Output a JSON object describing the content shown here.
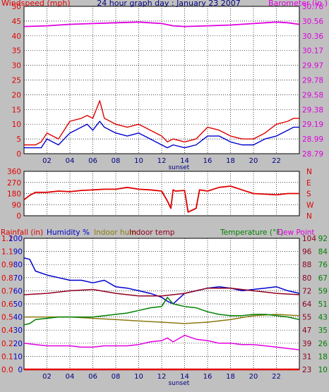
{
  "colors": {
    "background": "#c0c0c0",
    "plot_bg": "#ffffff",
    "axis_red": "#e00000",
    "magenta": "#e000e0",
    "blue": "#0000d0",
    "olive": "#8a7a10",
    "darkred": "#900020",
    "green": "#008000",
    "navy": "#000080"
  },
  "chart_data": [
    {
      "type": "line",
      "title": "24 hour graph day : January 23 2007",
      "left_label": "Windspeed (mph)",
      "right_label": "Barometer (in.)",
      "x_ticks": [
        "02",
        "04",
        "06",
        "08",
        "10",
        "12",
        "14",
        "16",
        "18",
        "20",
        "22"
      ],
      "x_note": "sunset",
      "y_left_ticks": [
        "0",
        "5",
        "10",
        "15",
        "20",
        "25",
        "30",
        "35",
        "40",
        "45",
        "50"
      ],
      "y_right_ticks": [
        "28.79",
        "28.99",
        "29.19",
        "29.38",
        "29.58",
        "29.78",
        "29.97",
        "30.17",
        "30.36",
        "30.56",
        "30.76"
      ],
      "ylim_left": [
        0,
        50
      ],
      "ylim_right": [
        28.79,
        30.76
      ],
      "grid": true,
      "series": [
        {
          "name": "gust",
          "color": "#e00000",
          "x": [
            0,
            1,
            1.5,
            2,
            3,
            4,
            5,
            5.5,
            6,
            6.6,
            7,
            8,
            9,
            10,
            11,
            12,
            12.5,
            13,
            14,
            15,
            16,
            17,
            18,
            19,
            20,
            21,
            22,
            23,
            23.5,
            24
          ],
          "values": [
            3,
            3,
            4,
            7,
            5,
            11,
            12,
            13,
            12,
            18,
            12,
            10,
            9,
            10,
            8,
            6,
            4,
            5,
            4,
            5,
            9,
            8,
            6,
            5,
            5,
            7,
            10,
            11,
            12,
            12
          ]
        },
        {
          "name": "average",
          "color": "#0000d0",
          "x": [
            0,
            1,
            1.5,
            2,
            3,
            4,
            5,
            5.5,
            6,
            6.6,
            7,
            8,
            9,
            10,
            11,
            12,
            12.5,
            13,
            14,
            15,
            16,
            17,
            18,
            19,
            20,
            21,
            22,
            23,
            23.5,
            24
          ],
          "values": [
            2,
            2,
            2,
            5,
            3,
            7,
            9,
            10,
            8,
            11,
            9,
            7,
            6,
            7,
            5,
            3,
            2,
            3,
            2,
            3,
            6,
            6,
            4,
            3,
            3,
            5,
            6,
            8,
            9,
            9
          ]
        },
        {
          "name": "barometer",
          "color": "#e000e0",
          "axis": "right",
          "x": [
            0,
            2,
            4,
            6,
            8,
            10,
            12,
            13,
            14,
            16,
            18,
            20,
            22,
            23,
            24
          ],
          "values": [
            30.49,
            30.5,
            30.52,
            30.53,
            30.54,
            30.55,
            30.53,
            30.5,
            30.49,
            30.5,
            30.51,
            30.53,
            30.55,
            30.54,
            30.52
          ]
        }
      ]
    },
    {
      "type": "line",
      "title": "",
      "y_left_ticks": [
        "0",
        "90",
        "180",
        "270",
        "360"
      ],
      "y_right_ticks": [
        "N",
        "W",
        "S",
        "E",
        "N"
      ],
      "ylim": [
        0,
        360
      ],
      "series": [
        {
          "name": "wind direction",
          "color": "#e00000",
          "x": [
            0,
            0.5,
            1,
            2,
            3,
            4,
            5,
            6,
            7,
            8,
            9,
            10,
            11,
            12,
            12.5,
            12.8,
            13,
            13.2,
            14,
            14.3,
            15,
            15.3,
            16,
            17,
            18,
            19,
            20,
            21,
            22,
            23,
            24
          ],
          "values": [
            130,
            165,
            190,
            190,
            200,
            195,
            205,
            210,
            215,
            215,
            230,
            215,
            210,
            200,
            120,
            60,
            210,
            200,
            205,
            30,
            60,
            210,
            200,
            230,
            240,
            210,
            180,
            175,
            170,
            180,
            180
          ]
        }
      ]
    },
    {
      "type": "line",
      "title": "",
      "legend": [
        "Rainfall (in)",
        "Humidity %",
        "Indoor hum",
        "Indoor temp",
        "Temperature (°F)",
        "Dew Point"
      ],
      "x_ticks": [
        "02",
        "04",
        "06",
        "08",
        "10",
        "12",
        "14",
        "16",
        "18",
        "20",
        "22"
      ],
      "x_note": "sunset",
      "y_rain_ticks": [
        "0.0",
        "0.1",
        "0.2",
        "0.4",
        "0.5",
        "0.6",
        "0.7",
        "0.8",
        "0.9",
        "1.1",
        "1.2"
      ],
      "y_hum_ticks": [
        "0",
        "10",
        "20",
        "30",
        "40",
        "50",
        "60",
        "70",
        "80",
        "90",
        "100"
      ],
      "y_temp_ticks_a": [
        "23",
        "31",
        "39",
        "47",
        "55",
        "64",
        "72",
        "80",
        "88",
        "96",
        "104"
      ],
      "y_temp_ticks_b": [
        "10",
        "18",
        "26",
        "35",
        "43",
        "51",
        "59",
        "67",
        "76",
        "84",
        "92"
      ],
      "ylim_humidity": [
        0,
        100
      ],
      "series": [
        {
          "name": "Humidity %",
          "color": "#0000d0",
          "x": [
            0,
            0.5,
            1,
            2,
            3,
            4,
            5,
            6,
            7,
            8,
            9,
            10,
            11,
            12,
            12.5,
            13,
            14,
            15,
            16,
            17,
            18,
            19,
            20,
            21,
            22,
            23,
            24
          ],
          "values": [
            85,
            84,
            75,
            72,
            70,
            68,
            68,
            66,
            68,
            63,
            62,
            60,
            58,
            55,
            52,
            50,
            58,
            60,
            62,
            63,
            62,
            60,
            61,
            62,
            63,
            60,
            58
          ]
        },
        {
          "name": "Indoor hum",
          "color": "#8a7a10",
          "x": [
            0,
            2,
            4,
            6,
            8,
            10,
            12,
            14,
            16,
            18,
            20,
            22,
            24
          ],
          "values": [
            40,
            40,
            40,
            39,
            38,
            37,
            36,
            35,
            36,
            38,
            41,
            42,
            41
          ]
        },
        {
          "name": "Indoor temp",
          "color": "#900020",
          "x": [
            0,
            2,
            4,
            6,
            8,
            10,
            12,
            14,
            16,
            18,
            20,
            22,
            24
          ],
          "values": [
            57,
            58,
            60,
            61,
            58,
            56,
            56,
            58,
            62,
            62,
            60,
            58,
            57
          ]
        },
        {
          "name": "Temperature (°F)",
          "color": "#008000",
          "x": [
            0,
            0.5,
            1,
            2,
            3,
            4,
            5,
            6,
            7,
            8,
            9,
            10,
            11,
            12,
            12.5,
            13,
            14,
            15,
            16,
            17,
            18,
            19,
            20,
            21,
            22,
            23,
            24
          ],
          "values": [
            34,
            35,
            38,
            39,
            40,
            40,
            40,
            40,
            41,
            42,
            43,
            45,
            47,
            48,
            55,
            50,
            48,
            47,
            44,
            42,
            41,
            41,
            42,
            42,
            41,
            40,
            38
          ]
        },
        {
          "name": "Dew Point",
          "color": "#e000e0",
          "x": [
            0,
            1,
            2,
            3,
            4,
            5,
            6,
            7,
            8,
            9,
            10,
            11,
            12,
            12.5,
            13,
            14,
            15,
            16,
            17,
            18,
            19,
            20,
            21,
            22,
            23,
            24
          ],
          "values": [
            20,
            19,
            18,
            18,
            18,
            17,
            17,
            18,
            18,
            18,
            19,
            21,
            22,
            24,
            21,
            26,
            23,
            22,
            20,
            20,
            19,
            19,
            18,
            17,
            16,
            15
          ]
        },
        {
          "name": "Rainfall (in)",
          "color": "#e00000",
          "x": [
            0,
            24
          ],
          "values": [
            0,
            0
          ]
        }
      ]
    }
  ]
}
